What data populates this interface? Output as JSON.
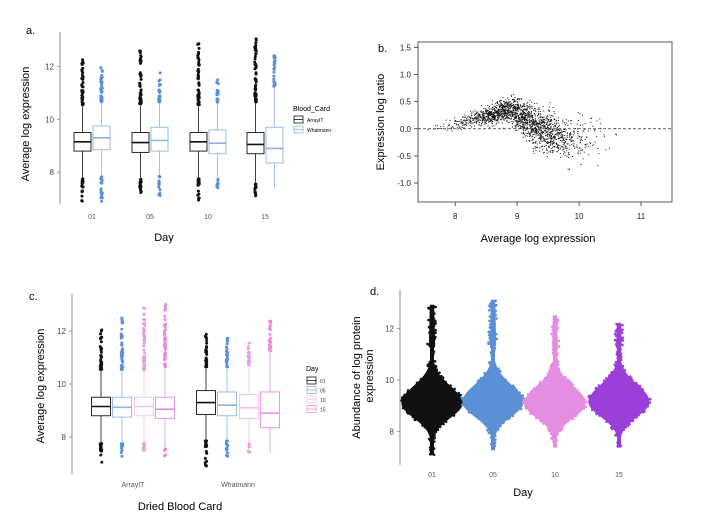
{
  "palette": {
    "black": "#111111",
    "blue": "#5b8fd6",
    "pink": "#e58de0",
    "purple": "#9a3fd8",
    "light_blue": "#8fb3e0",
    "light_pink": "#f2c1ee",
    "grey": "#bbbbbb"
  },
  "chart_data": [
    {
      "panel": "a.",
      "type": "boxplot",
      "xlabel": "Day",
      "ylabel": "Average log expression",
      "ylim": [
        6.8,
        13.3
      ],
      "yticks": [
        "8",
        "10",
        "12"
      ],
      "categories": [
        "01",
        "05",
        "10",
        "15"
      ],
      "legend": {
        "title": "Blood_Card",
        "items": [
          "ArrayIT",
          "Whatmann"
        ],
        "position": "right"
      },
      "series": [
        {
          "name": "ArrayIT",
          "color": "black",
          "boxes": [
            {
              "q1": 8.8,
              "median": 9.15,
              "q3": 9.5,
              "whislo": 7.8,
              "whishi": 10.5,
              "outlier_low": 6.9,
              "outlier_high": 12.3
            },
            {
              "q1": 8.75,
              "median": 9.12,
              "q3": 9.5,
              "whislo": 7.8,
              "whishi": 10.5,
              "outlier_low": 7.0,
              "outlier_high": 12.6
            },
            {
              "q1": 8.8,
              "median": 9.15,
              "q3": 9.5,
              "whislo": 7.8,
              "whishi": 10.5,
              "outlier_low": 6.9,
              "outlier_high": 12.9
            },
            {
              "q1": 8.7,
              "median": 9.05,
              "q3": 9.5,
              "whislo": 7.6,
              "whishi": 10.6,
              "outlier_low": 6.9,
              "outlier_high": 13.1
            }
          ]
        },
        {
          "name": "Whatmann",
          "color": "light_blue",
          "boxes": [
            {
              "q1": 8.85,
              "median": 9.3,
              "q3": 9.75,
              "whislo": 7.9,
              "whishi": 10.6,
              "outlier_low": 6.9,
              "outlier_high": 12.0
            },
            {
              "q1": 8.8,
              "median": 9.2,
              "q3": 9.7,
              "whislo": 7.9,
              "whishi": 10.6,
              "outlier_low": 7.1,
              "outlier_high": 11.8
            },
            {
              "q1": 8.7,
              "median": 9.1,
              "q3": 9.6,
              "whislo": 7.8,
              "whishi": 10.6,
              "outlier_low": 7.3,
              "outlier_high": 11.6
            },
            {
              "q1": 8.35,
              "median": 8.9,
              "q3": 9.7,
              "whislo": 7.4,
              "whishi": 11.2,
              "outlier_low": null,
              "outlier_high": 12.4
            }
          ]
        }
      ]
    },
    {
      "panel": "b.",
      "type": "scatter",
      "subtype": "MA plot",
      "xlabel": "Average log expression",
      "ylabel": "Expression log ratio",
      "xlim": [
        7.4,
        11.5
      ],
      "ylim": [
        -1.35,
        1.6
      ],
      "xticks": [
        "8",
        "9",
        "10",
        "11"
      ],
      "yticks": [
        "-1.0",
        "-0.5",
        "0.0",
        "0.5",
        "1.0",
        "1.5"
      ],
      "reference_line": {
        "y": 0,
        "style": "dashed"
      },
      "n_points": 1800,
      "cloud_profile": [
        {
          "x": 7.6,
          "mean": 0.0,
          "spread": 0.06
        },
        {
          "x": 8.0,
          "mean": 0.1,
          "spread": 0.14
        },
        {
          "x": 8.5,
          "mean": 0.25,
          "spread": 0.22
        },
        {
          "x": 8.9,
          "mean": 0.35,
          "spread": 0.3
        },
        {
          "x": 9.3,
          "mean": 0.05,
          "spread": 0.48
        },
        {
          "x": 9.8,
          "mean": -0.2,
          "spread": 0.5
        },
        {
          "x": 10.3,
          "mean": -0.15,
          "spread": 0.5
        },
        {
          "x": 10.9,
          "mean": 0.05,
          "spread": 0.45
        },
        {
          "x": 11.3,
          "mean": 0.2,
          "spread": 0.5
        }
      ]
    },
    {
      "panel": "c.",
      "type": "boxplot",
      "xlabel": "Dried Blood Card",
      "ylabel": "Average log expression",
      "ylim": [
        6.6,
        13.4
      ],
      "yticks": [
        "8",
        "10",
        "12"
      ],
      "categories": [
        "ArrayIT",
        "Whatmann"
      ],
      "legend": {
        "title": "Day",
        "items": [
          "01",
          "05",
          "10",
          "15"
        ],
        "position": "right"
      },
      "series": [
        {
          "name": "01",
          "color": "black",
          "boxes": [
            {
              "q1": 8.8,
              "median": 9.15,
              "q3": 9.5,
              "whislo": 7.8,
              "whishi": 10.5,
              "outlier_low": 7.0,
              "outlier_high": 12.1
            },
            {
              "q1": 8.85,
              "median": 9.3,
              "q3": 9.75,
              "whislo": 7.9,
              "whishi": 10.6,
              "outlier_low": 6.9,
              "outlier_high": 11.9
            }
          ]
        },
        {
          "name": "05",
          "color": "light_blue",
          "boxes": [
            {
              "q1": 8.75,
              "median": 9.12,
              "q3": 9.5,
              "whislo": 7.8,
              "whishi": 10.5,
              "outlier_low": 7.2,
              "outlier_high": 12.5
            },
            {
              "q1": 8.8,
              "median": 9.2,
              "q3": 9.7,
              "whislo": 7.9,
              "whishi": 10.6,
              "outlier_low": 7.2,
              "outlier_high": 11.8
            }
          ]
        },
        {
          "name": "10",
          "color": "light_pink",
          "boxes": [
            {
              "q1": 8.8,
              "median": 9.15,
              "q3": 9.5,
              "whislo": 7.8,
              "whishi": 10.5,
              "outlier_low": 7.4,
              "outlier_high": 12.9
            },
            {
              "q1": 8.7,
              "median": 9.1,
              "q3": 9.6,
              "whislo": 7.8,
              "whishi": 10.6,
              "outlier_low": 7.4,
              "outlier_high": 11.6
            }
          ]
        },
        {
          "name": "15",
          "color": "pink",
          "boxes": [
            {
              "q1": 8.7,
              "median": 9.05,
              "q3": 9.5,
              "whislo": 7.6,
              "whishi": 10.6,
              "outlier_low": 7.2,
              "outlier_high": 13.1
            },
            {
              "q1": 8.35,
              "median": 8.9,
              "q3": 9.7,
              "whislo": 7.4,
              "whishi": 11.2,
              "outlier_low": null,
              "outlier_high": 12.4
            }
          ]
        }
      ]
    },
    {
      "panel": "d.",
      "type": "beeswarm",
      "xlabel": "Day",
      "ylabel": "Abundance of log protein\nexpression",
      "ylim": [
        6.7,
        13.5
      ],
      "yticks": [
        "8",
        "10",
        "12"
      ],
      "categories": [
        "01",
        "05",
        "10",
        "15"
      ],
      "groups": [
        {
          "name": "01",
          "color": "black",
          "min": 7.1,
          "max": 12.9,
          "center": 9.1
        },
        {
          "name": "05",
          "color": "blue",
          "min": 7.3,
          "max": 13.1,
          "center": 9.15
        },
        {
          "name": "10",
          "color": "pink",
          "min": 7.4,
          "max": 12.5,
          "center": 9.1
        },
        {
          "name": "15",
          "color": "purple",
          "min": 7.4,
          "max": 12.2,
          "center": 9.15
        }
      ]
    }
  ]
}
